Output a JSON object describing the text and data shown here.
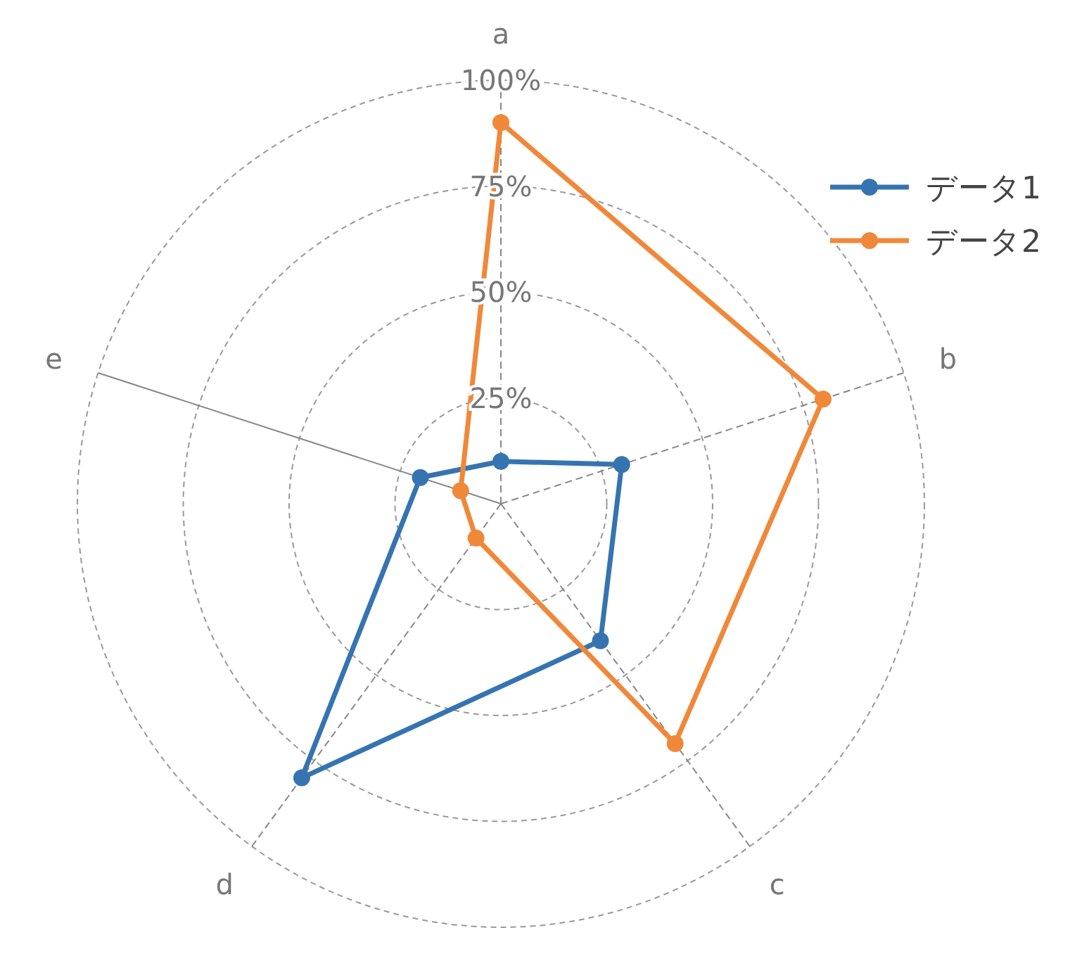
{
  "chart_data": {
    "type": "radar",
    "categories": [
      "a",
      "b",
      "c",
      "d",
      "e"
    ],
    "series": [
      {
        "name": "データ1",
        "color": "#3574b0",
        "values": [
          10,
          30,
          40,
          80,
          20
        ]
      },
      {
        "name": "データ2",
        "color": "#f0883a",
        "values": [
          90,
          80,
          70,
          10,
          10
        ]
      }
    ],
    "ylim": [
      0,
      100
    ],
    "yticks": [
      {
        "value": 25,
        "label": "25%"
      },
      {
        "value": 50,
        "label": "50%"
      },
      {
        "value": 75,
        "label": "75%"
      },
      {
        "value": 100,
        "label": "100%"
      }
    ],
    "grid": true,
    "legend": "top right",
    "marker": "circle",
    "line_style": "solid"
  }
}
